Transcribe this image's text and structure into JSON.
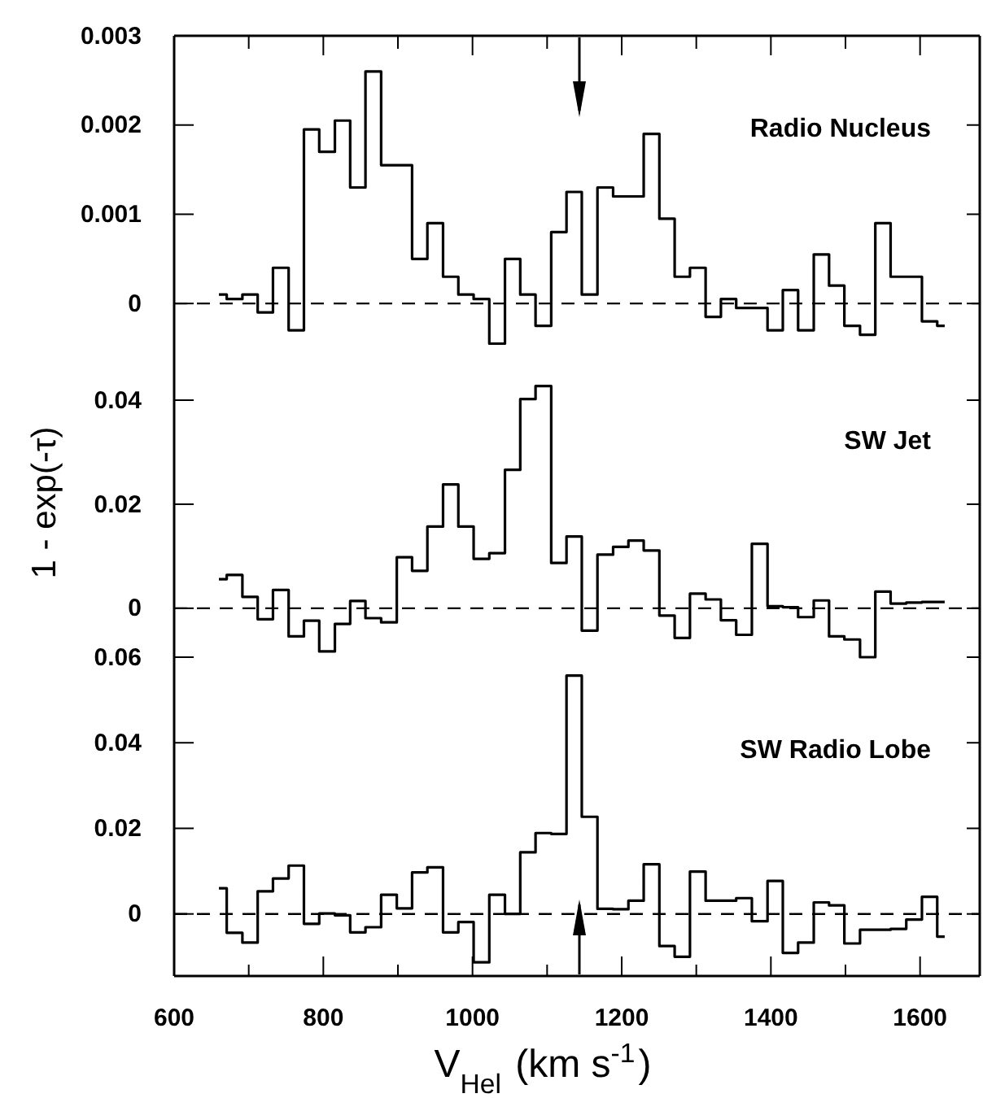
{
  "chart_data": [
    {
      "type": "step",
      "x": [
        660,
        681,
        702,
        722,
        743,
        764,
        784,
        805,
        826,
        846,
        867,
        888,
        909,
        929,
        950,
        971,
        991,
        1012,
        1033,
        1054,
        1074,
        1095,
        1116,
        1136,
        1157,
        1178,
        1199,
        1219,
        1240,
        1261,
        1281,
        1302,
        1323,
        1343,
        1364,
        1385,
        1406,
        1426,
        1447,
        1468,
        1488,
        1509,
        1530,
        1550,
        1571,
        1592,
        1613,
        1633
      ],
      "series": [
        {
          "name": "Radio Nucleus",
          "color": "#000000",
          "values": [
            0.0001,
            5e-05,
            0.0001,
            -0.0001,
            0.0004,
            -0.0003,
            0.00195,
            0.0017,
            0.00205,
            0.0013,
            0.0026,
            0.00155,
            0.00155,
            0.0005,
            0.0009,
            0.0003,
            0.0001,
            5e-05,
            -0.00045,
            0.0005,
            0.0001,
            -0.00025,
            0.0008,
            0.00125,
            0.0001,
            0.0013,
            0.0012,
            0.0012,
            0.0019,
            0.00095,
            0.0003,
            0.0004,
            -0.00015,
            5e-05,
            -5e-05,
            -5e-05,
            -0.0003,
            0.00015,
            -0.0003,
            0.00055,
            0.0002,
            -0.00025,
            -0.00035,
            0.0009,
            0.0003,
            0.0003,
            -0.0002,
            -0.00025
          ]
        }
      ],
      "xlim": [
        600,
        1680
      ],
      "xticks": [
        {
          "value": 600,
          "label": null
        },
        {
          "value": 700,
          "label": null
        },
        {
          "value": 800,
          "label": null
        },
        {
          "value": 900,
          "label": null
        },
        {
          "value": 1000,
          "label": null
        },
        {
          "value": 1100,
          "label": null
        },
        {
          "value": 1200,
          "label": null
        },
        {
          "value": 1300,
          "label": null
        },
        {
          "value": 1400,
          "label": null
        },
        {
          "value": 1500,
          "label": null
        },
        {
          "value": 1600,
          "label": null
        }
      ],
      "ylim": [
        -0.0005,
        0.003
      ],
      "yticks": [
        0,
        0.001,
        0.002,
        0.003
      ],
      "tick_labels": "y",
      "legend": "right",
      "grid": false,
      "line_style": "solid",
      "ref_lines": [
        {
          "axis": "y",
          "value": 0,
          "line_style": "dashed",
          "color": "#000000"
        }
      ]
    },
    {
      "type": "step",
      "x": [
        660,
        681,
        702,
        722,
        743,
        764,
        784,
        805,
        826,
        846,
        867,
        888,
        909,
        929,
        950,
        971,
        991,
        1012,
        1033,
        1054,
        1074,
        1095,
        1116,
        1136,
        1157,
        1178,
        1199,
        1219,
        1240,
        1261,
        1281,
        1302,
        1323,
        1343,
        1364,
        1385,
        1406,
        1426,
        1447,
        1468,
        1488,
        1509,
        1530,
        1550,
        1571,
        1592,
        1613,
        1633
      ],
      "series": [
        {
          "name": "SW Jet",
          "color": "#000000",
          "values": [
            0.0056,
            0.0064,
            0.0022,
            -0.0021,
            0.0035,
            -0.0054,
            -0.0024,
            -0.0083,
            -0.003,
            0.0014,
            -0.0019,
            -0.0027,
            0.0098,
            0.0072,
            0.0157,
            0.0238,
            0.0157,
            0.0095,
            0.0106,
            0.0266,
            0.0402,
            0.0427,
            0.0087,
            0.0138,
            -0.0043,
            0.0103,
            0.0118,
            0.013,
            0.0111,
            -0.0014,
            -0.0057,
            0.0028,
            0.0017,
            -0.0023,
            -0.0051,
            0.0124,
            0.0004,
            0.0002,
            -0.0017,
            0.0015,
            -0.0054,
            -0.006,
            -0.0094,
            0.0032,
            0.0009,
            0.0011,
            0.0012,
            0.0012
          ]
        }
      ],
      "xlim": [
        600,
        1680
      ],
      "ylim": [
        -0.0094,
        0.05
      ],
      "yticks": [
        0,
        0.02,
        0.04
      ],
      "tick_labels": "y",
      "legend": "top right",
      "grid": false,
      "line_style": "solid",
      "ylabel": "1 - exp(-τ)",
      "ref_lines": [
        {
          "axis": "y",
          "value": 0,
          "line_style": "dashed",
          "color": "#000000"
        }
      ]
    },
    {
      "type": "step",
      "x": [
        660,
        681,
        702,
        722,
        743,
        764,
        784,
        805,
        826,
        846,
        867,
        888,
        909,
        929,
        950,
        971,
        991,
        1012,
        1033,
        1054,
        1074,
        1095,
        1116,
        1136,
        1157,
        1178,
        1199,
        1219,
        1240,
        1261,
        1281,
        1302,
        1323,
        1343,
        1364,
        1385,
        1406,
        1426,
        1447,
        1468,
        1488,
        1509,
        1530,
        1550,
        1571,
        1592,
        1613,
        1633
      ],
      "series": [
        {
          "name": "SW Radio Lobe",
          "color": "#000000",
          "values": [
            0.006,
            -0.0044,
            -0.0067,
            0.0053,
            0.0083,
            0.0113,
            -0.0023,
            0.0001,
            -0.0003,
            -0.0043,
            -0.0031,
            0.0045,
            0.0013,
            0.0097,
            0.0109,
            -0.0043,
            -0.0019,
            -0.0113,
            0.0045,
            0,
            0.0144,
            0.0189,
            0.0187,
            0.0557,
            0.0227,
            0.0012,
            0.0011,
            0.0031,
            0.0116,
            -0.0075,
            -0.01,
            0.0099,
            0.0031,
            0.0031,
            0.0037,
            -0.0017,
            0.0077,
            -0.0091,
            -0.0067,
            0.0027,
            0.002,
            -0.0069,
            -0.0037,
            -0.0037,
            -0.0035,
            -0.0013,
            0.004,
            -0.0053
          ]
        }
      ],
      "xlim": [
        600,
        1680
      ],
      "xticks": [
        600,
        {
          "value": 700,
          "label": null
        },
        800,
        {
          "value": 900,
          "label": null
        },
        1000,
        {
          "value": 1100,
          "label": null
        },
        1200,
        {
          "value": 1300,
          "label": null
        },
        1400,
        {
          "value": 1500,
          "label": null
        },
        1600
      ],
      "ylim": [
        -0.0145,
        0.06
      ],
      "yticks": [
        0,
        0.02,
        0.04,
        0.06
      ],
      "legend": "top right",
      "grid": false,
      "line_style": "solid",
      "xlabel": "V$_{Hel}$ (km s$^{-1}$)",
      "ref_lines": [
        {
          "axis": "y",
          "value": 0,
          "line_style": "dashed",
          "color": "#000000"
        }
      ]
    }
  ]
}
